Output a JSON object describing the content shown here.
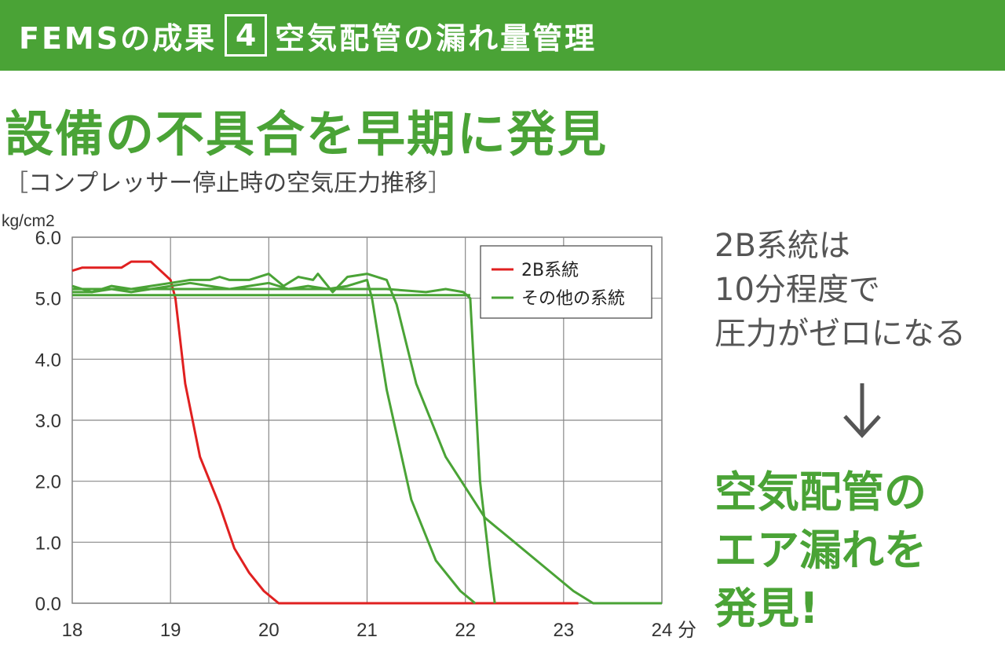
{
  "banner": {
    "prefix": "FEMSの成果",
    "number": "4",
    "title": "空気配管の漏れ量管理"
  },
  "headline": "設備の不具合を早期に発見",
  "subtitle": {
    "open": "［",
    "text": "コンプレッサー停止時の空気圧力推移",
    "close": "］"
  },
  "side_note": [
    "2B系統は",
    "10分程度で",
    "圧力がゼロになる"
  ],
  "result": [
    "空気配管の",
    "エア漏れを",
    "発見!"
  ],
  "colors": {
    "accent": "#4aa336",
    "red_series": "#e02020",
    "green_series": "#4aa336"
  },
  "chart_data": {
    "type": "line",
    "unit_label": "kg/cm2",
    "x_unit": "分",
    "xlim": [
      18,
      24
    ],
    "ylim": [
      0,
      6
    ],
    "x_ticks": [
      18,
      19,
      20,
      21,
      22,
      23,
      24
    ],
    "y_ticks": [
      0,
      1,
      2,
      3,
      4,
      5,
      6
    ],
    "y_tick_labels": [
      "0.0",
      "1.0",
      "2.0",
      "3.0",
      "4.0",
      "5.0",
      "6.0"
    ],
    "grid": true,
    "legend_position": "top-right",
    "legend": [
      "2B系統",
      "その他の系統"
    ],
    "series": [
      {
        "name": "2B系統",
        "color": "#e02020",
        "points": [
          [
            18,
            5.45
          ],
          [
            18.1,
            5.5
          ],
          [
            18.35,
            5.5
          ],
          [
            18.5,
            5.5
          ],
          [
            18.55,
            5.55
          ],
          [
            18.6,
            5.6
          ],
          [
            18.8,
            5.6
          ],
          [
            18.9,
            5.45
          ],
          [
            19,
            5.3
          ],
          [
            19.05,
            5.0
          ],
          [
            19.15,
            3.6
          ],
          [
            19.3,
            2.4
          ],
          [
            19.5,
            1.6
          ],
          [
            19.65,
            0.9
          ],
          [
            19.8,
            0.5
          ],
          [
            19.95,
            0.2
          ],
          [
            20.1,
            0.0
          ],
          [
            20.5,
            0.0
          ],
          [
            21,
            0.0
          ],
          [
            22,
            0.0
          ],
          [
            23.15,
            0.0
          ]
        ]
      },
      {
        "name": "その他の系統",
        "color": "#4aa336",
        "points": [
          [
            18,
            5.2
          ],
          [
            18.2,
            5.1
          ],
          [
            18.4,
            5.2
          ],
          [
            18.6,
            5.15
          ],
          [
            18.8,
            5.2
          ],
          [
            19,
            5.25
          ],
          [
            19.2,
            5.3
          ],
          [
            19.4,
            5.3
          ],
          [
            19.5,
            5.35
          ],
          [
            19.6,
            5.3
          ],
          [
            19.8,
            5.3
          ],
          [
            20,
            5.4
          ],
          [
            20.15,
            5.2
          ],
          [
            20.3,
            5.35
          ],
          [
            20.45,
            5.3
          ],
          [
            20.5,
            5.4
          ],
          [
            20.65,
            5.1
          ],
          [
            20.8,
            5.35
          ],
          [
            21,
            5.4
          ],
          [
            21.2,
            5.3
          ],
          [
            21.3,
            4.9
          ],
          [
            21.5,
            3.6
          ],
          [
            21.8,
            2.4
          ],
          [
            22,
            1.9
          ],
          [
            22.2,
            1.4
          ],
          [
            22.5,
            1.0
          ],
          [
            22.8,
            0.6
          ],
          [
            23.1,
            0.2
          ],
          [
            23.3,
            0.0
          ],
          [
            24,
            0.0
          ]
        ]
      },
      {
        "name": "その他の系統",
        "color": "#4aa336",
        "points": [
          [
            18,
            5.1
          ],
          [
            18.2,
            5.1
          ],
          [
            18.4,
            5.15
          ],
          [
            18.6,
            5.1
          ],
          [
            18.8,
            5.15
          ],
          [
            19,
            5.2
          ],
          [
            19.2,
            5.25
          ],
          [
            19.4,
            5.2
          ],
          [
            19.6,
            5.15
          ],
          [
            19.8,
            5.2
          ],
          [
            20,
            5.25
          ],
          [
            20.2,
            5.15
          ],
          [
            20.4,
            5.2
          ],
          [
            20.6,
            5.15
          ],
          [
            20.8,
            5.2
          ],
          [
            21,
            5.3
          ],
          [
            21.05,
            5.0
          ],
          [
            21.2,
            3.5
          ],
          [
            21.45,
            1.7
          ],
          [
            21.7,
            0.7
          ],
          [
            21.95,
            0.2
          ],
          [
            22.1,
            0.0
          ]
        ]
      },
      {
        "name": "その他の系統",
        "color": "#4aa336",
        "points": [
          [
            18,
            5.15
          ],
          [
            18.3,
            5.15
          ],
          [
            18.6,
            5.15
          ],
          [
            19,
            5.15
          ],
          [
            19.3,
            5.15
          ],
          [
            19.6,
            5.15
          ],
          [
            20,
            5.15
          ],
          [
            20.4,
            5.15
          ],
          [
            20.8,
            5.15
          ],
          [
            21.2,
            5.15
          ],
          [
            21.6,
            5.1
          ],
          [
            21.8,
            5.15
          ],
          [
            21.98,
            5.1
          ],
          [
            22.05,
            5.0
          ],
          [
            22.15,
            2.0
          ],
          [
            22.25,
            0.6
          ],
          [
            22.3,
            0.0
          ]
        ]
      },
      {
        "name": "その他の系統",
        "color": "#4aa336",
        "points": [
          [
            18,
            5.05
          ],
          [
            18.5,
            5.05
          ],
          [
            19,
            5.05
          ],
          [
            19.5,
            5.05
          ],
          [
            20,
            5.05
          ],
          [
            20.5,
            5.05
          ],
          [
            21,
            5.05
          ],
          [
            21.5,
            5.05
          ],
          [
            22,
            5.05
          ],
          [
            22.05,
            5.05
          ]
        ]
      }
    ]
  }
}
